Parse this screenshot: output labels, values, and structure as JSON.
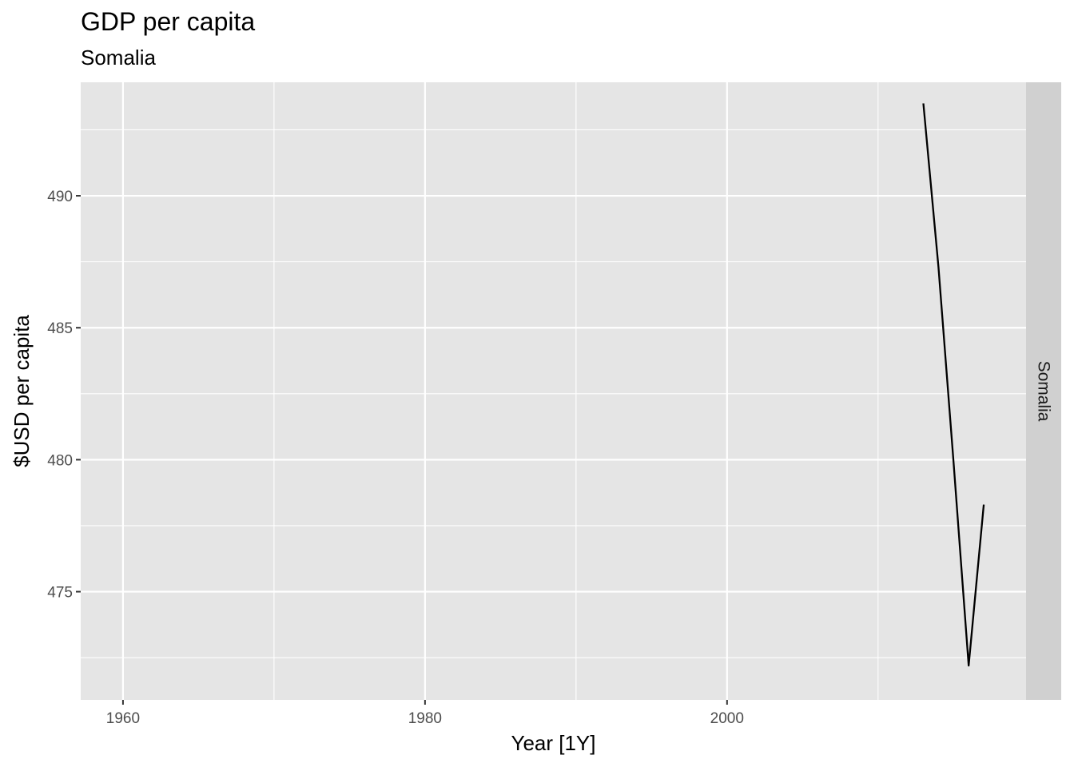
{
  "chart_data": {
    "type": "line",
    "title": "GDP per capita",
    "subtitle": "Somalia",
    "xlabel": "Year [1Y]",
    "ylabel": "$USD per capita",
    "facet_label": "Somalia",
    "xlim": [
      1957.2,
      2019.8
    ],
    "ylim": [
      470.9,
      494.3
    ],
    "x_ticks": [
      1960,
      1980,
      2000
    ],
    "x_minor_ticks": [
      1970,
      1990,
      2010
    ],
    "y_ticks": [
      475,
      480,
      485,
      490
    ],
    "y_minor_ticks": [
      472.5,
      477.5,
      482.5,
      487.5,
      492.5
    ],
    "grid": true,
    "series": [
      {
        "x": [
          2013,
          2014,
          2015,
          2016,
          2017
        ],
        "values": [
          493.5,
          487.3,
          479.9,
          472.2,
          478.3
        ],
        "color": "#000000"
      }
    ],
    "colors": {
      "panel": "#e5e5e5",
      "grid": "#ffffff",
      "strip": "#d0d0d0",
      "line": "#000000"
    }
  }
}
